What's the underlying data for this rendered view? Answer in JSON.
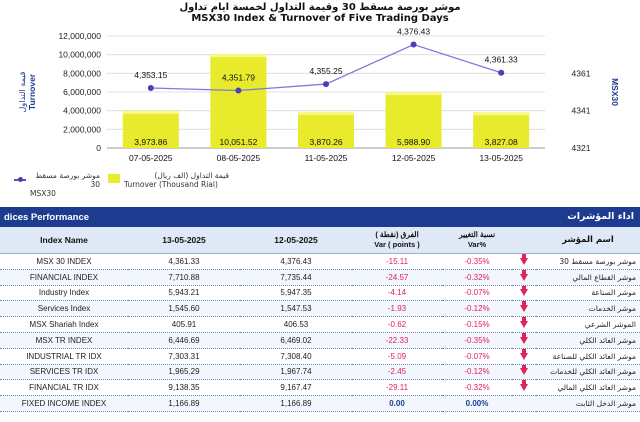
{
  "chart_data": {
    "type": "bar+line",
    "title_ar": "موشر بورصة مسقط 30 وقيمة التداول لخمسة ايام تداول",
    "title": "MSX30 Index & Turnover of Five Trading Days",
    "categories": [
      "07-05-2025",
      "08-05-2025",
      "11-05-2025",
      "12-05-2025",
      "13-05-2025"
    ],
    "turnover": [
      3973.86,
      10051.52,
      3870.26,
      5988.9,
      3827.08
    ],
    "turnover_labels": [
      "3,973.86",
      "10,051.52",
      "3,870.26",
      "5,988.90",
      "3,827.08"
    ],
    "index": [
      4353.15,
      4351.79,
      4355.25,
      4376.43,
      4361.33
    ],
    "index_labels": [
      "4,353.15",
      "4,351.79",
      "4,355.25",
      "4,376.43",
      "4,361.33"
    ],
    "left_axis": {
      "label_ar": "قيمة التداول",
      "label": "Turnover",
      "ticks": [
        "0",
        "2,000,000",
        "4,000,000",
        "6,000,000",
        "8,000,000",
        "10,000,000",
        "12,000,000"
      ],
      "range": [
        0,
        12000000
      ]
    },
    "right_axis": {
      "label": "MSX30",
      "ticks": [
        "4321",
        "4341",
        "4361"
      ],
      "range": [
        4321,
        4381
      ]
    },
    "legend": [
      {
        "text_ar": "موشر بورصة مسقط 30",
        "text": "MSX30",
        "color": "#5b54c9",
        "kind": "line"
      },
      {
        "text_ar": "قيمة التداول (الف ريال)",
        "text": "Turnover (Thousand Rial)",
        "color": "#e8ea2c",
        "kind": "bar"
      }
    ],
    "colors": {
      "bar": "#e8ea2c",
      "line": "#7f7ad8",
      "marker": "#4a3fb8"
    }
  },
  "performance": {
    "header_left": "dices Performance",
    "header_right": "اداء المؤشرات",
    "columns": [
      "Index Name",
      "13-05-2025",
      "12-05-2025",
      "الفرق (نقطة )\nVar ( points )",
      "نسبة التغيير\nVar%",
      "",
      "اسم المؤشر"
    ],
    "rows": [
      {
        "name": "MSX 30 INDEX",
        "d1": "4,361.33",
        "d2": "4,376.43",
        "var": "-15.11",
        "pct": "-0.35%",
        "dir": "down",
        "ar": "موشر بورصة مسقط 30"
      },
      {
        "name": "FINANCIAL INDEX",
        "d1": "7,710.88",
        "d2": "7,735.44",
        "var": "-24.57",
        "pct": "-0.32%",
        "dir": "down",
        "ar": "موشر القطاع المالي"
      },
      {
        "name": "Industry Index",
        "d1": "5,943.21",
        "d2": "5,947.35",
        "var": "-4.14",
        "pct": "-0.07%",
        "dir": "down",
        "ar": "موشر الصناعة"
      },
      {
        "name": "Services Index",
        "d1": "1,545.60",
        "d2": "1,547.53",
        "var": "-1.93",
        "pct": "-0.12%",
        "dir": "down",
        "ar": "موشر الخدمات"
      },
      {
        "name": "MSX Shariah Index",
        "d1": "405.91",
        "d2": "406.53",
        "var": "-0.62",
        "pct": "-0.15%",
        "dir": "down",
        "ar": "الموشر الشرعي"
      },
      {
        "name": "MSX TR INDEX",
        "d1": "6,446.69",
        "d2": "6,469.02",
        "var": "-22.33",
        "pct": "-0.35%",
        "dir": "down",
        "ar": "موشر العائد الكلي"
      },
      {
        "name": "INDUSTRIAL TR IDX",
        "d1": "7,303.31",
        "d2": "7,308.40",
        "var": "-5.09",
        "pct": "-0.07%",
        "dir": "down",
        "ar": "موشر العائد الكلي للصناعة"
      },
      {
        "name": "SERVICES TR IDX",
        "d1": "1,965.29",
        "d2": "1,967.74",
        "var": "-2.45",
        "pct": "-0.12%",
        "dir": "down",
        "ar": "موشر العائد الكلي للخدمات"
      },
      {
        "name": "FINANCIAL TR IDX",
        "d1": "9,138.35",
        "d2": "9,167.47",
        "var": "-29.11",
        "pct": "-0.32%",
        "dir": "down",
        "ar": "موشر العائد الكلي المالي"
      },
      {
        "name": "FIXED INCOME INDEX",
        "d1": "1,166.89",
        "d2": "1,166.89",
        "var": "0.00",
        "pct": "0.00%",
        "dir": "none",
        "ar": "موشر الدخل الثابت"
      }
    ]
  }
}
